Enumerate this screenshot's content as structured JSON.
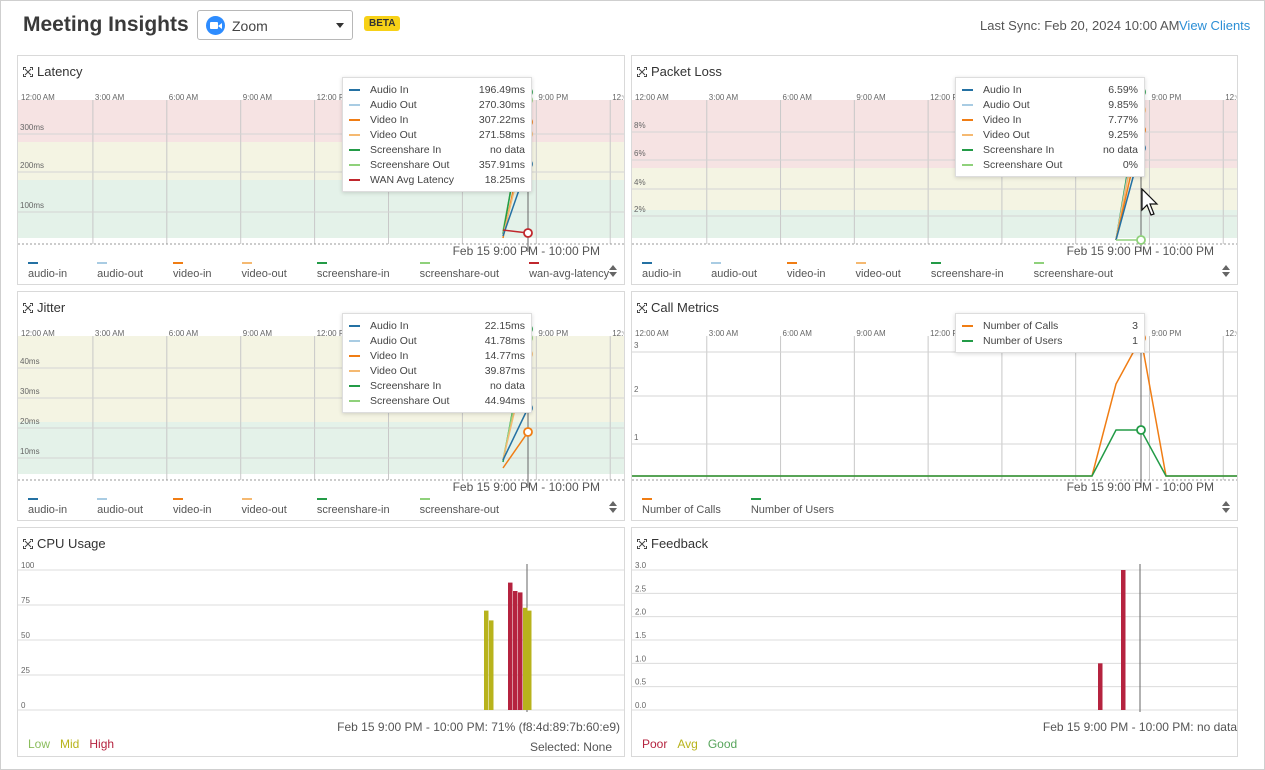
{
  "header": {
    "title": "Meeting Insights",
    "app_select": {
      "value": "Zoom"
    },
    "badge": "BETA",
    "last_sync": "Last Sync: Feb 20, 2024 10:00 AM",
    "view_clients": "View Clients"
  },
  "time_ticks": [
    "12:00 AM",
    "3:00 AM",
    "6:00 AM",
    "9:00 AM",
    "12:00 PM",
    "3:00 PM",
    "6:00 PM",
    "9:00 PM",
    "12:00"
  ],
  "panels": {
    "latency": {
      "title": "Latency",
      "y_ticks": [
        "300ms",
        "200ms",
        "100ms"
      ],
      "range_label": "Feb 15 9:00 PM - 10:00 PM",
      "legend": [
        "audio-in",
        "audio-out",
        "video-in",
        "video-out",
        "screenshare-in",
        "screenshare-out",
        "wan-avg-latency"
      ],
      "tooltip": [
        {
          "name": "Audio In",
          "value": "196.49ms"
        },
        {
          "name": "Audio Out",
          "value": "270.30ms"
        },
        {
          "name": "Video In",
          "value": "307.22ms"
        },
        {
          "name": "Video Out",
          "value": "271.58ms"
        },
        {
          "name": "Screenshare In",
          "value": "no data"
        },
        {
          "name": "Screenshare Out",
          "value": "357.91ms"
        },
        {
          "name": "WAN Avg Latency",
          "value": "18.25ms"
        }
      ]
    },
    "packet_loss": {
      "title": "Packet Loss",
      "y_ticks": [
        "8%",
        "6%",
        "4%",
        "2%"
      ],
      "range_label": "Feb 15 9:00 PM - 10:00 PM",
      "legend": [
        "audio-in",
        "audio-out",
        "video-in",
        "video-out",
        "screenshare-in",
        "screenshare-out"
      ],
      "tooltip": [
        {
          "name": "Audio In",
          "value": "6.59%"
        },
        {
          "name": "Audio Out",
          "value": "9.85%"
        },
        {
          "name": "Video In",
          "value": "7.77%"
        },
        {
          "name": "Video Out",
          "value": "9.25%"
        },
        {
          "name": "Screenshare In",
          "value": "no data"
        },
        {
          "name": "Screenshare Out",
          "value": "0%"
        }
      ]
    },
    "jitter": {
      "title": "Jitter",
      "y_ticks": [
        "40ms",
        "30ms",
        "20ms",
        "10ms"
      ],
      "range_label": "Feb 15 9:00 PM - 10:00 PM",
      "legend": [
        "audio-in",
        "audio-out",
        "video-in",
        "video-out",
        "screenshare-in",
        "screenshare-out"
      ],
      "tooltip": [
        {
          "name": "Audio In",
          "value": "22.15ms"
        },
        {
          "name": "Audio Out",
          "value": "41.78ms"
        },
        {
          "name": "Video In",
          "value": "14.77ms"
        },
        {
          "name": "Video Out",
          "value": "39.87ms"
        },
        {
          "name": "Screenshare In",
          "value": "no data"
        },
        {
          "name": "Screenshare Out",
          "value": "44.94ms"
        }
      ]
    },
    "call_metrics": {
      "title": "Call Metrics",
      "y_ticks": [
        "3",
        "2",
        "1"
      ],
      "range_label": "Feb 15 9:00 PM - 10:00 PM",
      "legend": [
        "Number of Calls",
        "Number of Users"
      ],
      "tooltip": [
        {
          "name": "Number of Calls",
          "value": "3"
        },
        {
          "name": "Number of Users",
          "value": "1"
        }
      ]
    },
    "cpu": {
      "title": "CPU Usage",
      "y_ticks": [
        "100",
        "75",
        "50",
        "25",
        "0"
      ],
      "range_label": "Feb 15 9:00 PM - 10:00 PM: 71% (f8:4d:89:7b:60:e9)",
      "selected": "Selected: None",
      "legend": [
        {
          "label": "Low",
          "color": "#8bbd5c"
        },
        {
          "label": "Mid",
          "color": "#b8b31c"
        },
        {
          "label": "High",
          "color": "#b5233f"
        }
      ]
    },
    "feedback": {
      "title": "Feedback",
      "y_ticks": [
        "3.0",
        "2.5",
        "2.0",
        "1.5",
        "1.0",
        "0.5",
        "0.0"
      ],
      "range_label": "Feb 15 9:00 PM - 10:00 PM: no data",
      "legend": [
        {
          "label": "Poor",
          "color": "#b5233f"
        },
        {
          "label": "Avg",
          "color": "#b8b31c"
        },
        {
          "label": "Good",
          "color": "#58a55c"
        }
      ]
    }
  },
  "colors": {
    "audio_in": "#2471a3",
    "audio_out": "#a9cce3",
    "video_in": "#f07d14",
    "video_out": "#f5b971",
    "screenshare_in": "#239b47",
    "screenshare_out": "#8fd17b",
    "wan": "#c0272d",
    "band_red": "#f6e3e3",
    "band_yellow": "#f4f4e3",
    "band_green": "#e4f2e9"
  },
  "chart_data": [
    {
      "type": "line",
      "title": "Latency",
      "x": [
        "Feb 15 9:00 PM"
      ],
      "series": [
        {
          "name": "Audio In",
          "values": [
            196.49
          ]
        },
        {
          "name": "Audio Out",
          "values": [
            270.3
          ]
        },
        {
          "name": "Video In",
          "values": [
            307.22
          ]
        },
        {
          "name": "Video Out",
          "values": [
            271.58
          ]
        },
        {
          "name": "Screenshare Out",
          "values": [
            357.91
          ]
        },
        {
          "name": "WAN Avg Latency",
          "values": [
            18.25
          ]
        }
      ]
    },
    {
      "type": "line",
      "title": "Packet Loss",
      "x": [
        "Feb 15 9:00 PM"
      ],
      "series": [
        {
          "name": "Audio In",
          "values": [
            6.59
          ]
        },
        {
          "name": "Audio Out",
          "values": [
            9.85
          ]
        },
        {
          "name": "Video In",
          "values": [
            7.77
          ]
        },
        {
          "name": "Video Out",
          "values": [
            9.25
          ]
        },
        {
          "name": "Screenshare Out",
          "values": [
            0
          ]
        }
      ]
    },
    {
      "type": "line",
      "title": "Jitter",
      "x": [
        "Feb 15 9:00 PM"
      ],
      "series": [
        {
          "name": "Audio In",
          "values": [
            22.15
          ]
        },
        {
          "name": "Audio Out",
          "values": [
            41.78
          ]
        },
        {
          "name": "Video In",
          "values": [
            14.77
          ]
        },
        {
          "name": "Video Out",
          "values": [
            39.87
          ]
        },
        {
          "name": "Screenshare Out",
          "values": [
            44.94
          ]
        }
      ]
    },
    {
      "type": "line",
      "title": "Call Metrics",
      "x": [
        "Feb 15 9:00 PM"
      ],
      "series": [
        {
          "name": "Number of Calls",
          "values": [
            3
          ]
        },
        {
          "name": "Number of Users",
          "values": [
            1
          ]
        }
      ]
    },
    {
      "type": "bar",
      "title": "CPU Usage",
      "ylim": [
        0,
        100
      ],
      "values": [
        71,
        64,
        91,
        85,
        84,
        73,
        71
      ]
    },
    {
      "type": "bar",
      "title": "Feedback",
      "ylim": [
        0,
        3
      ],
      "values": [
        1,
        3
      ]
    }
  ]
}
